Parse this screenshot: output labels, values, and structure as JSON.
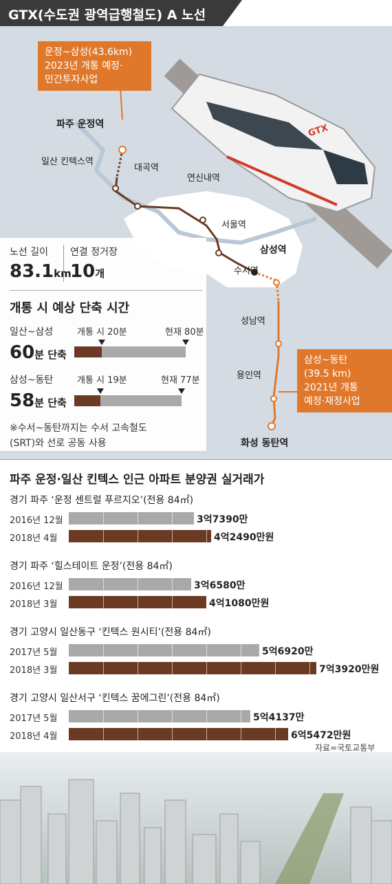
{
  "header": {
    "title": "GTX(수도권 광역급행철도) A 노선"
  },
  "map": {
    "callout_north": {
      "line1": "운정~삼성(43.6km)",
      "line2": "2023년 개통 예정·",
      "line3": "민간투자사업"
    },
    "callout_south": {
      "line1": "삼성~동탄",
      "line2": "(39.5 km)",
      "line3": "2021년 개통",
      "line4": "예정·재정사업"
    },
    "stations": {
      "paju": "파주 운정역",
      "ilsan": "일산 킨텍스역",
      "daegok": "대곡역",
      "yeonsinnae": "연신내역",
      "seoul": "서울역",
      "samseong": "삼성역",
      "suseo": "수서역",
      "seongnam": "성남역",
      "yongin": "용인역",
      "dongtan": "화성 동탄역"
    },
    "train_logo": "GTX"
  },
  "stats": {
    "length_label": "노선 길이",
    "length_value": "83.1",
    "length_unit": "km",
    "stops_label": "연결 정거장",
    "stops_value": "10",
    "stops_unit": "개"
  },
  "time_section": {
    "title": "개통 시 예상 단축 시간",
    "routes": [
      {
        "route": "일산~삼성",
        "open_label": "개통 시 20분",
        "now_label": "현재 80분",
        "saving_num": "60",
        "saving_unit": "분 단축",
        "open_minutes": 20,
        "now_minutes": 80
      },
      {
        "route": "삼성~동탄",
        "open_label": "개통 시 19분",
        "now_label": "현재 77분",
        "saving_num": "58",
        "saving_unit": "분 단축",
        "open_minutes": 19,
        "now_minutes": 77
      }
    ],
    "note_line1": "※수서~동탄까지는 수서 고속철도",
    "note_line2": "(SRT)와 선로 공동 사용"
  },
  "price_section": {
    "title": "파주 운정·일산 킨텍스 인근 아파트 분양권 실거래가",
    "source": "자료=국토교통부"
  },
  "colors": {
    "accent": "#e0782c",
    "dark_bar": "#6a3a22",
    "gray_bar": "#a9a9a9",
    "header": "#3a3a3a"
  },
  "chart_data": [
    {
      "type": "bar",
      "title": "개통 시 예상 단축 시간",
      "categories": [
        "일산~삼성",
        "삼성~동탄"
      ],
      "series": [
        {
          "name": "개통 시",
          "values": [
            20,
            19
          ]
        },
        {
          "name": "현재",
          "values": [
            80,
            77
          ]
        }
      ]
    },
    {
      "type": "bar",
      "title": "파주 운정·일산 킨텍스 인근 아파트 분양권 실거래가",
      "groups": [
        {
          "name": "경기 파주 ‘운정 센트럴 푸르지오’(전용 84㎡)",
          "rows": [
            {
              "date": "2016년 12월",
              "label": "3억7390만",
              "value": 37390
            },
            {
              "date": "2018년 4월",
              "label": "4억2490만원",
              "value": 42490
            }
          ]
        },
        {
          "name": "경기 파주 ‘힐스테이트 운정’(전용 84㎡)",
          "rows": [
            {
              "date": "2016년 12월",
              "label": "3억6580만",
              "value": 36580
            },
            {
              "date": "2018년 3월",
              "label": "4억1080만원",
              "value": 41080
            }
          ]
        },
        {
          "name": "경기 고양시 일산동구 ‘킨텍스 원시티’(전용 84㎡)",
          "rows": [
            {
              "date": "2017년 5월",
              "label": "5억6920만",
              "value": 56920
            },
            {
              "date": "2018년 3월",
              "label": "7억3920만원",
              "value": 73920
            }
          ]
        },
        {
          "name": "경기 고양시 일산서구 ‘킨텍스 꿈에그린’(전용 84㎡)",
          "rows": [
            {
              "date": "2017년 5월",
              "label": "5억4137만",
              "value": 54137
            },
            {
              "date": "2018년 4월",
              "label": "6억5472만원",
              "value": 65472
            }
          ]
        }
      ]
    }
  ]
}
